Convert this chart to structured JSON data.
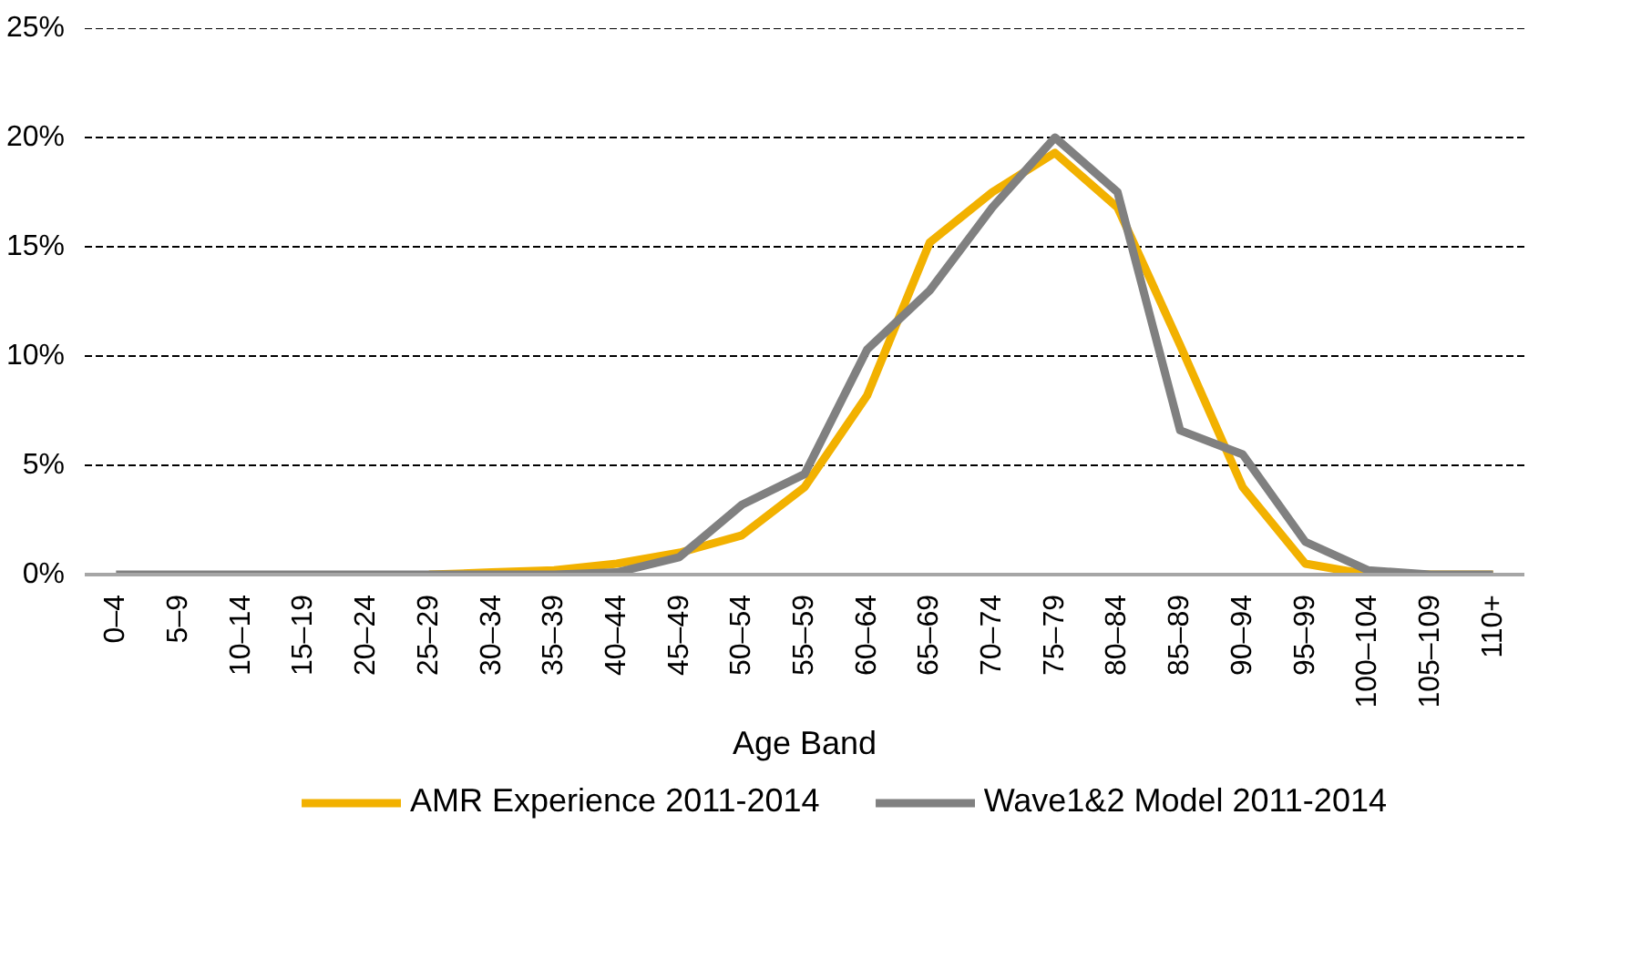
{
  "chart_data": {
    "type": "line",
    "xlabel": "Age Band",
    "categories": [
      "0–4",
      "5–9",
      "10–14",
      "15–19",
      "20–24",
      "25–29",
      "30–34",
      "35–39",
      "40–44",
      "45–49",
      "50–54",
      "55–59",
      "60–64",
      "65–69",
      "70–74",
      "75–79",
      "80–84",
      "85–89",
      "90–94",
      "95–99",
      "100–104",
      "105–109",
      "110+"
    ],
    "series": [
      {
        "name": "AMR Experience 2011-2014",
        "color": "#f2b100",
        "values": [
          null,
          null,
          null,
          null,
          null,
          0,
          0.1,
          0.2,
          0.5,
          1.0,
          1.8,
          4.0,
          8.2,
          15.2,
          17.5,
          19.3,
          16.8,
          10.5,
          4.0,
          0.5,
          0,
          0,
          0
        ]
      },
      {
        "name": "Wave1&2 Model 2011-2014",
        "color": "#808080",
        "values": [
          0,
          0,
          0,
          0,
          0,
          0,
          0,
          0,
          0.1,
          0.8,
          3.2,
          4.6,
          10.3,
          13.0,
          16.8,
          20.0,
          17.5,
          6.6,
          5.5,
          1.5,
          0.2,
          0,
          0
        ]
      }
    ],
    "ylim": [
      0,
      25
    ],
    "yticks": [
      {
        "value": 0,
        "label": "0%"
      },
      {
        "value": 5,
        "label": "5%"
      },
      {
        "value": 10,
        "label": "10%"
      },
      {
        "value": 15,
        "label": "15%"
      },
      {
        "value": 20,
        "label": "20%"
      },
      {
        "value": 25,
        "label": "25%"
      }
    ],
    "grid": "y",
    "legend": "bottom",
    "line_style": "solid",
    "marker": "none"
  }
}
